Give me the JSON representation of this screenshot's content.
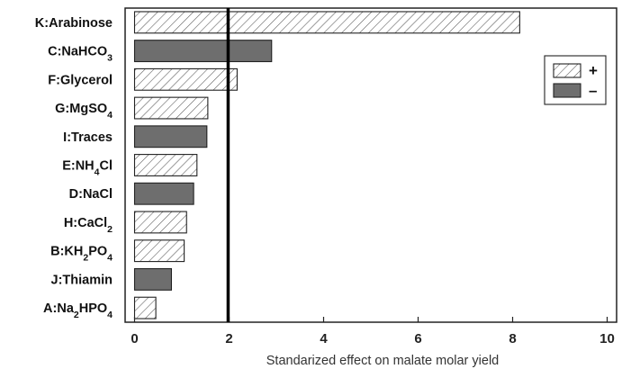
{
  "chart_data": {
    "type": "bar",
    "orientation": "horizontal",
    "categories": [
      {
        "id": "K",
        "parts": [
          {
            "t": "K:Arabinose"
          }
        ]
      },
      {
        "id": "C",
        "parts": [
          {
            "t": "C:NaHCO"
          },
          {
            "t": "3",
            "sub": true
          }
        ]
      },
      {
        "id": "F",
        "parts": [
          {
            "t": "F:Glycerol"
          }
        ]
      },
      {
        "id": "G",
        "parts": [
          {
            "t": "G:MgSO"
          },
          {
            "t": "4",
            "sub": true
          }
        ]
      },
      {
        "id": "I",
        "parts": [
          {
            "t": "I:Traces"
          }
        ]
      },
      {
        "id": "E",
        "parts": [
          {
            "t": "E:NH"
          },
          {
            "t": "4",
            "sub": true
          },
          {
            "t": "Cl"
          }
        ]
      },
      {
        "id": "D",
        "parts": [
          {
            "t": "D:NaCl"
          }
        ]
      },
      {
        "id": "H",
        "parts": [
          {
            "t": "H:CaCl"
          },
          {
            "t": "2",
            "sub": true
          }
        ]
      },
      {
        "id": "B",
        "parts": [
          {
            "t": "B:KH"
          },
          {
            "t": "2",
            "sub": true
          },
          {
            "t": "PO"
          },
          {
            "t": "4",
            "sub": true
          }
        ]
      },
      {
        "id": "J",
        "parts": [
          {
            "t": "J:Thiamin"
          }
        ]
      },
      {
        "id": "A",
        "parts": [
          {
            "t": "A:Na"
          },
          {
            "t": "2",
            "sub": true
          },
          {
            "t": "HPO"
          },
          {
            "t": "4",
            "sub": true
          }
        ]
      }
    ],
    "values": [
      8.15,
      2.9,
      2.17,
      1.55,
      1.53,
      1.32,
      1.25,
      1.1,
      1.05,
      0.78,
      0.45
    ],
    "signs": [
      "+",
      "-",
      "+",
      "+",
      "-",
      "+",
      "-",
      "+",
      "+",
      "-",
      "+"
    ],
    "reference_line": 1.98,
    "xlim": [
      -0.2,
      10.2
    ],
    "xticks": [
      0,
      2,
      4,
      6,
      8,
      10
    ],
    "xlabel": "Standarized effect on malate molar yield",
    "legend": {
      "position": "top-right",
      "entries": [
        {
          "sign": "+",
          "style": "hatched"
        },
        {
          "sign": "–",
          "style": "filled"
        }
      ]
    },
    "colors": {
      "filled": "#6e6e6e",
      "hatch": "#555555",
      "frame": "#222222",
      "reference": "#000000"
    }
  }
}
